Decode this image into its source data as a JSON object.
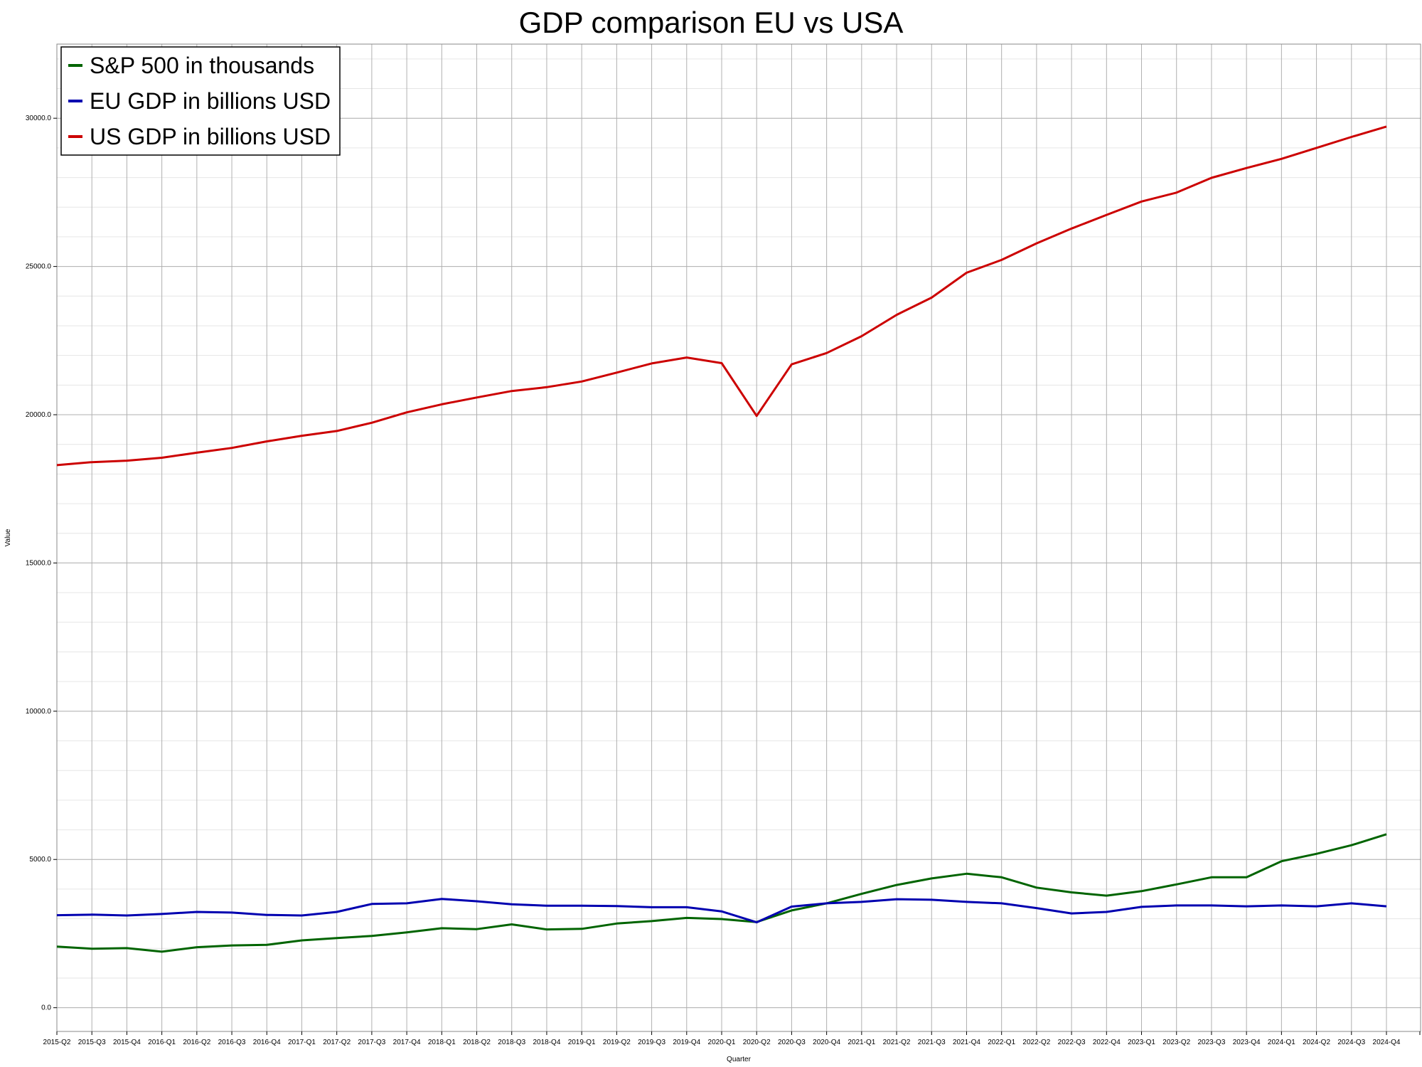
{
  "chart_data": {
    "type": "line",
    "title": "GDP comparison EU vs USA",
    "xlabel": "Quarter",
    "ylabel": "Value",
    "ylim": [
      -800,
      32500
    ],
    "yticks": [
      0,
      5000,
      10000,
      15000,
      20000,
      25000,
      30000
    ],
    "ytick_labels": [
      "0.0",
      "5000.0",
      "10000.0",
      "15000.0",
      "20000.0",
      "25000.0",
      "30000.0"
    ],
    "grid": true,
    "legend_position": "top-left",
    "categories": [
      "2015-Q2",
      "2015-Q3",
      "2015-Q4",
      "2016-Q1",
      "2016-Q2",
      "2016-Q3",
      "2016-Q4",
      "2017-Q1",
      "2017-Q2",
      "2017-Q3",
      "2017-Q4",
      "2018-Q1",
      "2018-Q2",
      "2018-Q3",
      "2018-Q4",
      "2019-Q1",
      "2019-Q2",
      "2019-Q3",
      "2019-Q4",
      "2020-Q1",
      "2020-Q2",
      "2020-Q3",
      "2020-Q4",
      "2021-Q1",
      "2021-Q2",
      "2021-Q3",
      "2021-Q4",
      "2022-Q1",
      "2022-Q2",
      "2022-Q3",
      "2022-Q4",
      "2023-Q1",
      "2023-Q2",
      "2023-Q3",
      "2023-Q4",
      "2024-Q1",
      "2024-Q2",
      "2024-Q3",
      "2024-Q4"
    ],
    "series": [
      {
        "name": "S&P 500 in thousands",
        "color": "#006400",
        "values": [
          2060,
          1990,
          2010,
          1890,
          2040,
          2100,
          2120,
          2270,
          2350,
          2420,
          2540,
          2680,
          2650,
          2810,
          2640,
          2660,
          2840,
          2920,
          3030,
          2990,
          2890,
          3280,
          3520,
          3840,
          4140,
          4360,
          4520,
          4400,
          4050,
          3890,
          3780,
          3930,
          4160,
          4400,
          4400,
          4940,
          5190,
          5480,
          5850
        ]
      },
      {
        "name": "EU GDP in billions USD",
        "color": "#0000b0",
        "values": [
          3120,
          3140,
          3110,
          3160,
          3230,
          3210,
          3130,
          3110,
          3230,
          3500,
          3520,
          3670,
          3590,
          3490,
          3440,
          3440,
          3430,
          3390,
          3390,
          3250,
          2880,
          3410,
          3520,
          3570,
          3660,
          3640,
          3570,
          3520,
          3360,
          3180,
          3230,
          3400,
          3450,
          3450,
          3420,
          3450,
          3420,
          3520,
          3420
        ]
      },
      {
        "name": "US GDP in billions USD",
        "color": "#cc0000",
        "values": [
          18300,
          18400,
          18450,
          18550,
          18720,
          18880,
          19100,
          19290,
          19450,
          19730,
          20080,
          20350,
          20580,
          20800,
          20930,
          21120,
          21420,
          21730,
          21930,
          21740,
          19960,
          21700,
          22080,
          22650,
          23370,
          23950,
          24790,
          25220,
          25780,
          26280,
          26740,
          27190,
          27490,
          27990,
          28320,
          28630,
          29000,
          29370,
          29720
        ]
      }
    ]
  }
}
